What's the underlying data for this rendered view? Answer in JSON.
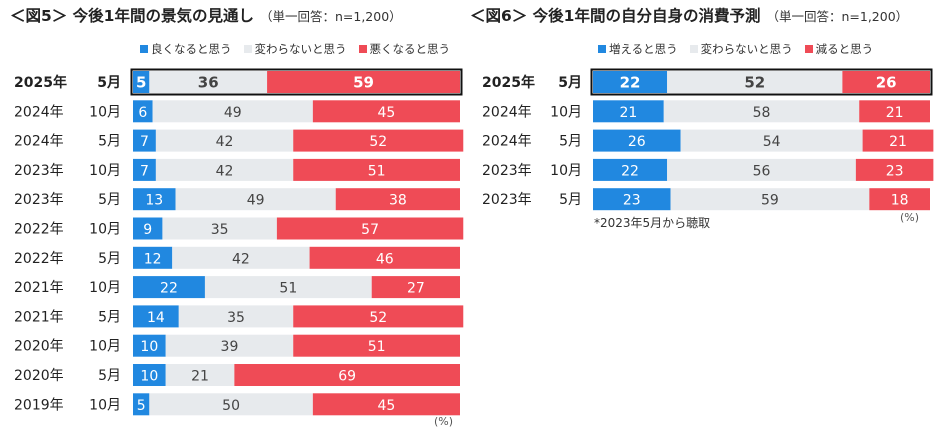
{
  "chart_data": [
    {
      "type": "bar",
      "stacked": "horizontal-100",
      "title": "＜図5＞ 今後1年間の景気の見通し",
      "sample_note": "（単一回答：n=1,200）",
      "unit": "(%)",
      "legend": [
        "良くなると思う",
        "変わらないと思う",
        "悪くなると思う"
      ],
      "colors": [
        "#2188e0",
        "#e7eaed",
        "#ef4b56"
      ],
      "categories": [
        {
          "year": "2025年",
          "month": "5月",
          "highlight": true
        },
        {
          "year": "2024年",
          "month": "10月"
        },
        {
          "year": "2024年",
          "month": "5月"
        },
        {
          "year": "2023年",
          "month": "10月"
        },
        {
          "year": "2023年",
          "month": "5月"
        },
        {
          "year": "2022年",
          "month": "10月"
        },
        {
          "year": "2022年",
          "month": "5月"
        },
        {
          "year": "2021年",
          "month": "10月"
        },
        {
          "year": "2021年",
          "month": "5月"
        },
        {
          "year": "2020年",
          "month": "10月"
        },
        {
          "year": "2020年",
          "month": "5月"
        },
        {
          "year": "2019年",
          "month": "10月"
        }
      ],
      "series": [
        {
          "name": "良くなると思う",
          "values": [
            5,
            6,
            7,
            7,
            13,
            9,
            12,
            22,
            14,
            10,
            10,
            5
          ]
        },
        {
          "name": "変わらないと思う",
          "values": [
            36,
            49,
            42,
            42,
            49,
            35,
            42,
            51,
            35,
            39,
            21,
            50
          ]
        },
        {
          "name": "悪くなると思う",
          "values": [
            59,
            45,
            52,
            51,
            38,
            57,
            46,
            27,
            52,
            51,
            69,
            45
          ]
        }
      ]
    },
    {
      "type": "bar",
      "stacked": "horizontal-100",
      "title": "＜図6＞ 今後1年間の自分自身の消費予測",
      "sample_note": "（単一回答：n=1,200）",
      "unit": "(%)",
      "note": "*2023年5月から聴取",
      "legend": [
        "増えると思う",
        "変わらないと思う",
        "減ると思う"
      ],
      "colors": [
        "#2188e0",
        "#e7eaed",
        "#ef4b56"
      ],
      "categories": [
        {
          "year": "2025年",
          "month": "5月",
          "highlight": true
        },
        {
          "year": "2024年",
          "month": "10月"
        },
        {
          "year": "2024年",
          "month": "5月"
        },
        {
          "year": "2023年",
          "month": "10月"
        },
        {
          "year": "2023年",
          "month": "5月"
        }
      ],
      "series": [
        {
          "name": "増えると思う",
          "values": [
            22,
            21,
            26,
            22,
            23
          ]
        },
        {
          "name": "変わらないと思う",
          "values": [
            52,
            58,
            54,
            56,
            59
          ]
        },
        {
          "name": "減ると思う",
          "values": [
            26,
            21,
            21,
            23,
            18
          ]
        }
      ]
    }
  ]
}
